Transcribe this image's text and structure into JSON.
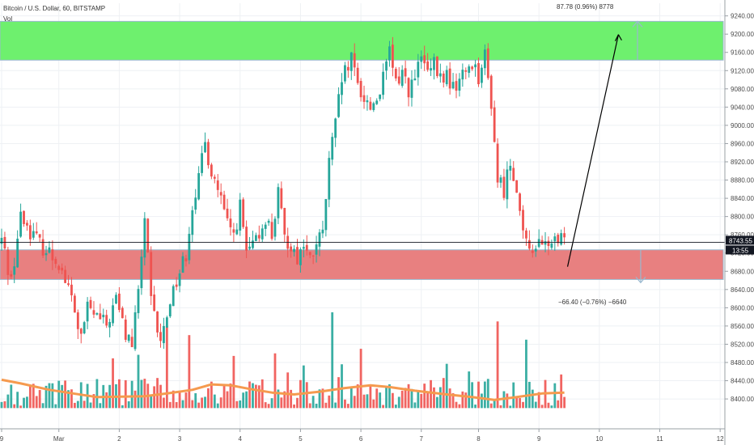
{
  "header": {
    "title": "Bitcoin / U.S. Dollar, 60, BITSTAMP",
    "volume_label": "Vol"
  },
  "colors": {
    "up": "#26a69a",
    "down": "#ef5350",
    "ma": "#f59a4f",
    "target_zone": "#6ef06e",
    "stop_zone": "#e88080",
    "zone_border": "#9ab8cf",
    "price_tag_bg": "#131722",
    "time_tag_bg": "#131722"
  },
  "annotations": {
    "target_text": "87.78 (0.96%) 8778",
    "stop_text": "−66.40 (−0.76%) −6640"
  },
  "current": {
    "price_label": "8743.55",
    "countdown_label": "13:55"
  },
  "chart_data": {
    "type": "candlestick",
    "title": "Bitcoin / U.S. Dollar, 60, BITSTAMP",
    "xlabel": "",
    "ylabel": "",
    "ylim": [
      8370,
      9250
    ],
    "x_ticks": [
      "9",
      "Mar",
      "2",
      "3",
      "4",
      "5",
      "6",
      "7",
      "8",
      "9",
      "10",
      "11",
      "12"
    ],
    "y_ticks": [
      8400,
      8440,
      8480,
      8520,
      8560,
      8600,
      8640,
      8680,
      8720,
      8760,
      8800,
      8840,
      8880,
      8920,
      8960,
      9000,
      9040,
      9080,
      9120,
      9160,
      9200,
      9240
    ],
    "price_line": 8743.55,
    "path_points": [
      [
        0,
        8750
      ],
      [
        3,
        8660
      ],
      [
        6,
        8800
      ],
      [
        12,
        8740
      ],
      [
        18,
        8700
      ],
      [
        22,
        8620
      ],
      [
        25,
        8530
      ],
      [
        27,
        8600
      ],
      [
        30,
        8580
      ],
      [
        33,
        8560
      ],
      [
        36,
        8620
      ],
      [
        39,
        8540
      ],
      [
        41,
        8520
      ],
      [
        43,
        8630
      ],
      [
        45,
        8800
      ],
      [
        47,
        8610
      ],
      [
        50,
        8520
      ],
      [
        53,
        8620
      ],
      [
        56,
        8680
      ],
      [
        58,
        8720
      ],
      [
        60,
        8830
      ],
      [
        62,
        8880
      ],
      [
        64,
        8960
      ],
      [
        66,
        8900
      ],
      [
        68,
        8860
      ],
      [
        71,
        8780
      ],
      [
        73,
        8760
      ],
      [
        75,
        8820
      ],
      [
        77,
        8720
      ],
      [
        79,
        8730
      ],
      [
        81,
        8760
      ],
      [
        83,
        8800
      ],
      [
        85,
        8760
      ],
      [
        87,
        8850
      ],
      [
        89,
        8750
      ],
      [
        91,
        8740
      ],
      [
        93,
        8710
      ],
      [
        95,
        8740
      ],
      [
        97,
        8700
      ],
      [
        99,
        8740
      ],
      [
        101,
        8760
      ],
      [
        103,
        8920
      ],
      [
        105,
        9000
      ],
      [
        107,
        9100
      ],
      [
        110,
        9140
      ],
      [
        112,
        9090
      ],
      [
        114,
        9060
      ],
      [
        116,
        9040
      ],
      [
        118,
        9060
      ],
      [
        120,
        9100
      ],
      [
        122,
        9160
      ],
      [
        124,
        9090
      ],
      [
        126,
        9120
      ],
      [
        128,
        9080
      ],
      [
        130,
        9100
      ],
      [
        132,
        9150
      ],
      [
        134,
        9110
      ],
      [
        136,
        9130
      ],
      [
        138,
        9100
      ],
      [
        140,
        9110
      ],
      [
        142,
        9080
      ],
      [
        144,
        9100
      ],
      [
        146,
        9120
      ],
      [
        148,
        9140
      ],
      [
        150,
        9110
      ],
      [
        152,
        9150
      ],
      [
        154,
        9050
      ],
      [
        156,
        8880
      ],
      [
        158,
        8860
      ],
      [
        160,
        8920
      ],
      [
        162,
        8870
      ],
      [
        164,
        8750
      ],
      [
        166,
        8730
      ],
      [
        168,
        8740
      ],
      [
        170,
        8730
      ],
      [
        172,
        8745
      ],
      [
        174,
        8740
      ],
      [
        176,
        8745
      ],
      [
        177,
        8743.55
      ]
    ],
    "volume_ma_points": [
      [
        0,
        8442
      ],
      [
        6,
        8434
      ],
      [
        15,
        8420
      ],
      [
        30,
        8404
      ],
      [
        45,
        8406
      ],
      [
        53,
        8413
      ],
      [
        60,
        8420
      ],
      [
        66,
        8432
      ],
      [
        72,
        8430
      ],
      [
        78,
        8422
      ],
      [
        85,
        8414
      ],
      [
        92,
        8410
      ],
      [
        100,
        8416
      ],
      [
        108,
        8424
      ],
      [
        116,
        8430
      ],
      [
        122,
        8426
      ],
      [
        130,
        8418
      ],
      [
        140,
        8410
      ],
      [
        148,
        8404
      ],
      [
        155,
        8398
      ],
      [
        162,
        8404
      ],
      [
        170,
        8412
      ],
      [
        177,
        8414
      ]
    ],
    "volume_spikes": [
      [
        52,
        8560
      ],
      [
        104,
        8590
      ],
      [
        156,
        8570
      ],
      [
        165,
        8530
      ],
      [
        59,
        8540
      ],
      [
        113,
        8510
      ],
      [
        86,
        8500
      ]
    ],
    "zones": {
      "target": {
        "top": 9228,
        "bottom": 9143
      },
      "stop": {
        "top": 8727,
        "bottom": 8662
      }
    },
    "trade_arrow": {
      "from": [
        178,
        8690
      ],
      "to": [
        194,
        9199
      ]
    },
    "arrows": {
      "up": {
        "x": 200,
        "from": 9143,
        "to": 9228
      },
      "down": {
        "x": 201,
        "from": 8727,
        "to": 8655
      }
    },
    "bar_count": 178,
    "x_tick_bar_index": [
      0,
      18,
      37,
      56,
      75,
      94,
      113,
      132,
      150,
      169,
      188,
      207,
      226
    ]
  }
}
